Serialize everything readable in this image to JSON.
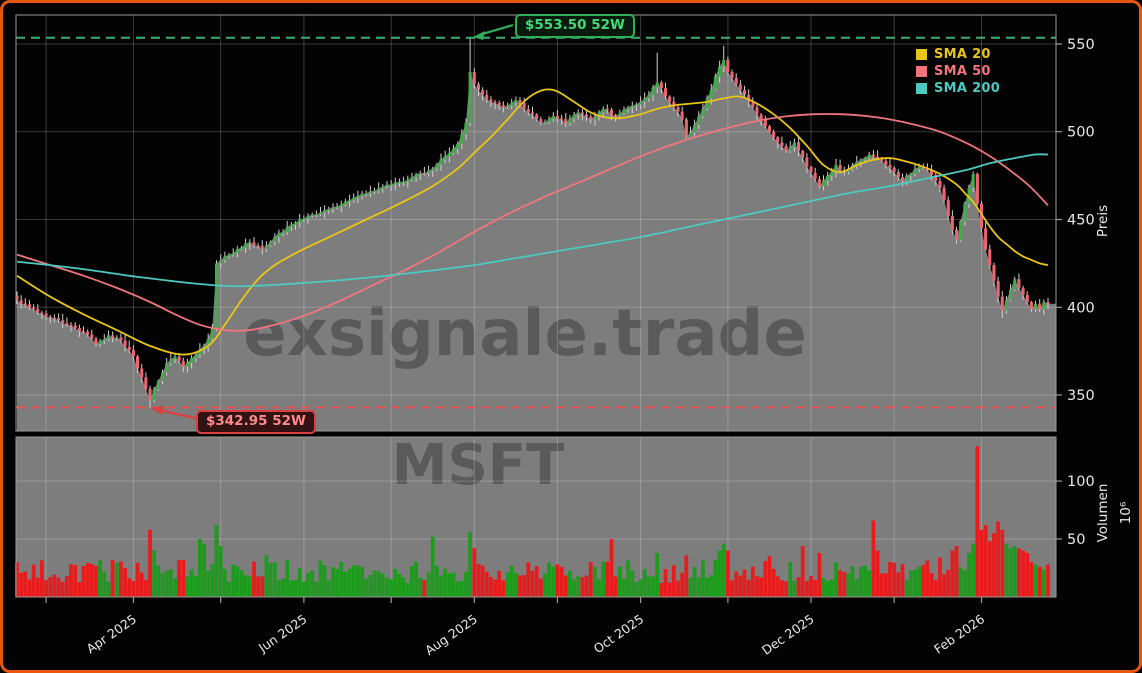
{
  "chart_data": {
    "type": "candlestick",
    "symbol": "MSFT",
    "watermarks": {
      "brand": "exsignale.trade",
      "symbol": "MSFT"
    },
    "axes": {
      "price_label": "Preis",
      "volume_label": "Volumen",
      "volume_exponent": "10⁶",
      "price_ticks": [
        350,
        400,
        450,
        500,
        550
      ],
      "volume_ticks": [
        50,
        100
      ],
      "price_ylim": [
        329.5,
        566.5
      ],
      "volume_ylim": [
        0,
        138
      ],
      "x_ticks": [
        {
          "day": 7,
          "label": ""
        },
        {
          "day": 28,
          "label": "Apr 2025"
        },
        {
          "day": 49,
          "label": ""
        },
        {
          "day": 69,
          "label": "Jun 2025"
        },
        {
          "day": 90,
          "label": ""
        },
        {
          "day": 110,
          "label": "Aug 2025"
        },
        {
          "day": 130,
          "label": ""
        },
        {
          "day": 150,
          "label": "Oct 2025"
        },
        {
          "day": 171,
          "label": ""
        },
        {
          "day": 191,
          "label": "Dec 2025"
        },
        {
          "day": 211,
          "label": ""
        },
        {
          "day": 232,
          "label": "Feb 2026"
        }
      ],
      "grid": true
    },
    "legend": [
      {
        "label": "SMA 20",
        "color": "#e9c517"
      },
      {
        "label": "SMA 50",
        "color": "#f0757d"
      },
      {
        "label": "SMA 200",
        "color": "#4ec9c0"
      }
    ],
    "levels": [
      {
        "label": "$553.50 52W",
        "value": 553.5,
        "color": "#3cb06a",
        "kind": "52w-high"
      },
      {
        "label": "$342.95 52W",
        "value": 342.95,
        "color": "#e85454",
        "kind": "52w-low"
      }
    ],
    "days_total": 249,
    "close_anchors": [
      [
        0,
        404
      ],
      [
        4,
        399
      ],
      [
        8,
        394
      ],
      [
        12,
        390
      ],
      [
        16,
        386
      ],
      [
        19,
        379
      ],
      [
        22,
        384
      ],
      [
        25,
        381
      ],
      [
        28,
        372
      ],
      [
        30,
        360
      ],
      [
        32,
        347
      ],
      [
        34,
        358
      ],
      [
        36,
        368
      ],
      [
        38,
        372
      ],
      [
        40,
        366
      ],
      [
        42,
        371
      ],
      [
        44,
        376
      ],
      [
        46,
        382
      ],
      [
        47,
        388
      ],
      [
        48,
        425
      ],
      [
        50,
        429
      ],
      [
        53,
        433
      ],
      [
        56,
        437
      ],
      [
        59,
        433
      ],
      [
        62,
        440
      ],
      [
        66,
        447
      ],
      [
        70,
        452
      ],
      [
        75,
        456
      ],
      [
        80,
        461
      ],
      [
        85,
        466
      ],
      [
        90,
        470
      ],
      [
        95,
        474
      ],
      [
        100,
        479
      ],
      [
        103,
        486
      ],
      [
        106,
        493
      ],
      [
        108,
        505
      ],
      [
        109,
        534
      ],
      [
        110,
        527
      ],
      [
        112,
        521
      ],
      [
        114,
        517
      ],
      [
        117,
        514
      ],
      [
        120,
        518
      ],
      [
        123,
        511
      ],
      [
        126,
        505
      ],
      [
        129,
        509
      ],
      [
        132,
        505
      ],
      [
        135,
        511
      ],
      [
        138,
        507
      ],
      [
        141,
        513
      ],
      [
        144,
        509
      ],
      [
        147,
        514
      ],
      [
        150,
        517
      ],
      [
        152,
        521
      ],
      [
        154,
        528
      ],
      [
        156,
        520
      ],
      [
        158,
        514
      ],
      [
        160,
        507
      ],
      [
        161,
        497
      ],
      [
        163,
        504
      ],
      [
        165,
        513
      ],
      [
        167,
        524
      ],
      [
        169,
        537
      ],
      [
        170,
        541
      ],
      [
        171,
        534
      ],
      [
        173,
        527
      ],
      [
        175,
        521
      ],
      [
        177,
        514
      ],
      [
        179,
        507
      ],
      [
        181,
        500
      ],
      [
        183,
        494
      ],
      [
        185,
        489
      ],
      [
        187,
        494
      ],
      [
        188,
        489
      ],
      [
        190,
        480
      ],
      [
        192,
        473
      ],
      [
        193,
        469
      ],
      [
        195,
        475
      ],
      [
        197,
        481
      ],
      [
        199,
        477
      ],
      [
        201,
        481
      ],
      [
        203,
        484
      ],
      [
        205,
        487
      ],
      [
        207,
        485
      ],
      [
        209,
        481
      ],
      [
        211,
        477
      ],
      [
        213,
        472
      ],
      [
        215,
        476
      ],
      [
        217,
        480
      ],
      [
        219,
        478
      ],
      [
        221,
        472
      ],
      [
        222,
        468
      ],
      [
        223,
        461
      ],
      [
        224,
        452
      ],
      [
        225,
        444
      ],
      [
        226,
        438
      ],
      [
        227,
        449
      ],
      [
        228,
        459
      ],
      [
        229,
        468
      ],
      [
        230,
        476
      ],
      [
        231,
        459
      ],
      [
        232,
        445
      ],
      [
        233,
        433
      ],
      [
        234,
        424
      ],
      [
        235,
        415
      ],
      [
        236,
        406
      ],
      [
        237,
        398
      ],
      [
        238,
        404
      ],
      [
        239,
        410
      ],
      [
        240,
        416
      ],
      [
        241,
        411
      ],
      [
        242,
        407
      ],
      [
        243,
        403
      ],
      [
        244,
        399
      ],
      [
        245,
        402
      ],
      [
        246,
        399
      ],
      [
        247,
        403
      ],
      [
        248,
        402
      ]
    ],
    "special_days": [
      {
        "day": 32,
        "low": 342.95
      },
      {
        "day": 109,
        "high": 553.5
      },
      {
        "day": 154,
        "high": 545
      },
      {
        "day": 170,
        "high": 549
      },
      {
        "day": 226,
        "low": 436
      },
      {
        "day": 237,
        "low": 394
      }
    ],
    "volume_typical_range": [
      12,
      32
    ],
    "volume_overrides": [
      [
        32,
        58
      ],
      [
        33,
        40
      ],
      [
        44,
        50
      ],
      [
        45,
        46
      ],
      [
        48,
        62
      ],
      [
        49,
        44
      ],
      [
        60,
        36
      ],
      [
        100,
        52
      ],
      [
        109,
        56
      ],
      [
        110,
        42
      ],
      [
        143,
        50
      ],
      [
        154,
        38
      ],
      [
        161,
        36
      ],
      [
        169,
        40
      ],
      [
        170,
        46
      ],
      [
        171,
        40
      ],
      [
        181,
        35
      ],
      [
        189,
        44
      ],
      [
        193,
        38
      ],
      [
        206,
        66
      ],
      [
        207,
        40
      ],
      [
        222,
        34
      ],
      [
        225,
        40
      ],
      [
        226,
        44
      ],
      [
        229,
        38
      ],
      [
        230,
        46
      ],
      [
        231,
        130
      ],
      [
        232,
        58
      ],
      [
        233,
        62
      ],
      [
        234,
        48
      ],
      [
        235,
        55
      ],
      [
        236,
        65
      ],
      [
        237,
        58
      ],
      [
        238,
        46
      ],
      [
        239,
        42
      ],
      [
        240,
        44
      ],
      [
        241,
        42
      ],
      [
        242,
        40
      ],
      [
        243,
        38
      ],
      [
        244,
        30
      ],
      [
        245,
        28
      ],
      [
        246,
        26
      ],
      [
        247,
        24
      ],
      [
        248,
        28
      ]
    ],
    "sma": [
      {
        "name": "SMA 20",
        "color": "#e9c517",
        "points": [
          [
            0,
            418
          ],
          [
            8,
            406
          ],
          [
            16,
            396
          ],
          [
            24,
            387
          ],
          [
            32,
            378
          ],
          [
            40,
            373
          ],
          [
            46,
            378
          ],
          [
            50,
            390
          ],
          [
            54,
            404
          ],
          [
            58,
            416
          ],
          [
            62,
            424
          ],
          [
            68,
            432
          ],
          [
            76,
            441
          ],
          [
            84,
            450
          ],
          [
            92,
            459
          ],
          [
            100,
            469
          ],
          [
            106,
            479
          ],
          [
            110,
            488
          ],
          [
            114,
            497
          ],
          [
            118,
            507
          ],
          [
            121,
            515
          ],
          [
            124,
            521
          ],
          [
            127,
            524
          ],
          [
            130,
            523
          ],
          [
            134,
            517
          ],
          [
            138,
            511
          ],
          [
            142,
            508
          ],
          [
            146,
            508
          ],
          [
            150,
            510
          ],
          [
            154,
            513
          ],
          [
            158,
            515
          ],
          [
            162,
            516
          ],
          [
            166,
            517
          ],
          [
            170,
            519
          ],
          [
            174,
            520
          ],
          [
            178,
            516
          ],
          [
            182,
            510
          ],
          [
            186,
            502
          ],
          [
            190,
            492
          ],
          [
            194,
            481
          ],
          [
            198,
            477
          ],
          [
            202,
            481
          ],
          [
            206,
            484
          ],
          [
            210,
            485
          ],
          [
            214,
            483
          ],
          [
            218,
            480
          ],
          [
            222,
            476
          ],
          [
            226,
            470
          ],
          [
            228,
            465
          ],
          [
            230,
            460
          ],
          [
            232,
            453
          ],
          [
            234,
            446
          ],
          [
            236,
            440
          ],
          [
            238,
            436
          ],
          [
            240,
            432
          ],
          [
            242,
            429
          ],
          [
            244,
            427
          ],
          [
            246,
            425
          ],
          [
            248,
            424
          ]
        ]
      },
      {
        "name": "SMA 50",
        "color": "#f0757d",
        "points": [
          [
            0,
            430
          ],
          [
            8,
            424
          ],
          [
            16,
            418
          ],
          [
            24,
            411
          ],
          [
            32,
            403
          ],
          [
            38,
            396
          ],
          [
            44,
            390
          ],
          [
            50,
            387
          ],
          [
            56,
            387
          ],
          [
            62,
            390
          ],
          [
            70,
            396
          ],
          [
            78,
            404
          ],
          [
            86,
            413
          ],
          [
            94,
            422
          ],
          [
            102,
            432
          ],
          [
            110,
            443
          ],
          [
            118,
            453
          ],
          [
            126,
            462
          ],
          [
            134,
            470
          ],
          [
            142,
            478
          ],
          [
            150,
            486
          ],
          [
            158,
            493
          ],
          [
            166,
            499
          ],
          [
            174,
            504
          ],
          [
            180,
            507
          ],
          [
            186,
            509
          ],
          [
            192,
            510
          ],
          [
            198,
            510
          ],
          [
            204,
            509
          ],
          [
            210,
            507
          ],
          [
            216,
            504
          ],
          [
            222,
            500
          ],
          [
            228,
            494
          ],
          [
            232,
            489
          ],
          [
            236,
            483
          ],
          [
            240,
            476
          ],
          [
            244,
            468
          ],
          [
            248,
            458
          ]
        ]
      },
      {
        "name": "SMA 200",
        "color": "#4ec9c0",
        "points": [
          [
            0,
            426
          ],
          [
            15,
            422
          ],
          [
            30,
            417
          ],
          [
            45,
            413
          ],
          [
            55,
            412
          ],
          [
            70,
            414
          ],
          [
            85,
            417
          ],
          [
            100,
            421
          ],
          [
            110,
            424
          ],
          [
            120,
            428
          ],
          [
            130,
            432
          ],
          [
            140,
            436
          ],
          [
            150,
            440
          ],
          [
            160,
            445
          ],
          [
            170,
            450
          ],
          [
            180,
            455
          ],
          [
            190,
            460
          ],
          [
            200,
            465
          ],
          [
            210,
            469
          ],
          [
            220,
            474
          ],
          [
            228,
            478
          ],
          [
            234,
            482
          ],
          [
            240,
            485
          ],
          [
            245,
            487
          ],
          [
            248,
            487
          ]
        ]
      }
    ],
    "colors": {
      "background": "#030303",
      "border": "#e8570e",
      "area_fill": "#7d7d7d",
      "grid": "rgba(255,255,255,0.22)",
      "spine": "#9a9a9a",
      "tick_text": "#e8e8e8",
      "candle_up": "#3fae49",
      "candle_down": "#ef6471",
      "wick": "#cfcfcf",
      "volume_up": "#1d9b1d",
      "volume_down": "#e81c1c",
      "watermark": "rgba(0,0,0,0.28)"
    }
  }
}
